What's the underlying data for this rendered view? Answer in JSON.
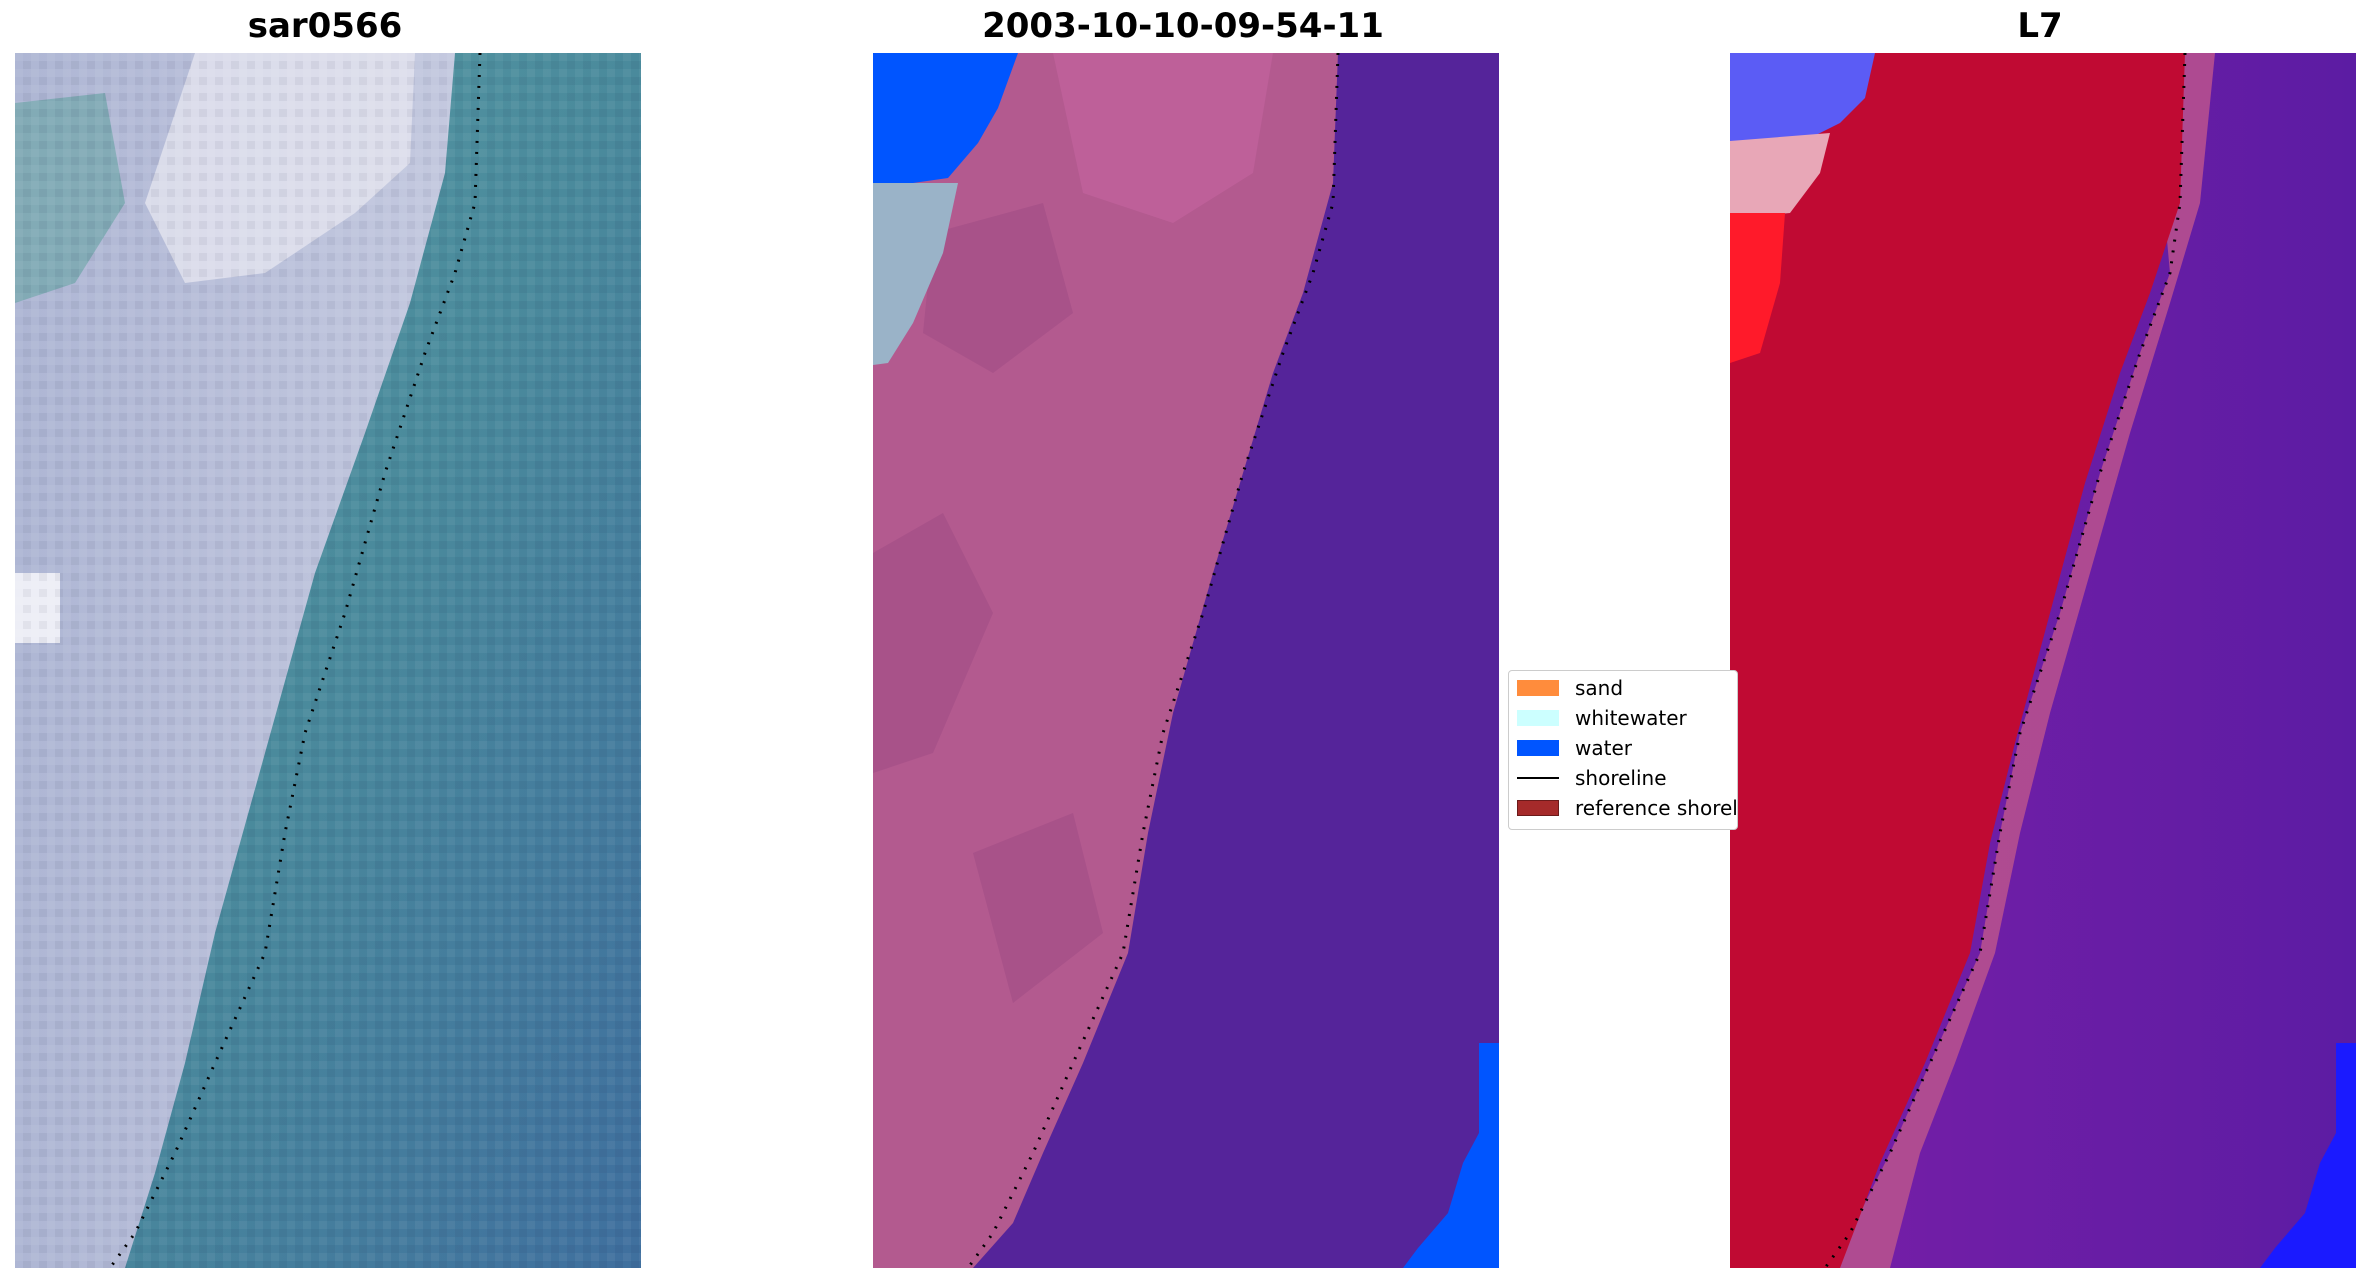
{
  "titles": {
    "left": "sar0566",
    "center": "2003-10-10-09-54-11",
    "right": "L7"
  },
  "legend": {
    "items": [
      {
        "label": "sand",
        "color": "#ff8c3c",
        "kind": "patch"
      },
      {
        "label": "whitewater",
        "color": "#ccffff",
        "kind": "patch"
      },
      {
        "label": "water",
        "color": "#0055ff",
        "kind": "patch"
      },
      {
        "label": "shoreline",
        "color": "#000000",
        "kind": "line"
      },
      {
        "label": "reference shoreline",
        "color": "#a52a2a",
        "kind": "patch"
      }
    ]
  },
  "colors": {
    "rgb_sand": "#c9cfe0",
    "rgb_water_light": "#4f8f9c",
    "rgb_water_dark": "#3e6e9c",
    "class_sand": "#b35a8f",
    "class_water": "#55249a",
    "class_water_blue": "#0055ff",
    "class_whitewater": "#9ab3c8",
    "index_red": "#c00a33",
    "index_purple": "#6a1fa3",
    "index_blue": "#1a1aff"
  }
}
